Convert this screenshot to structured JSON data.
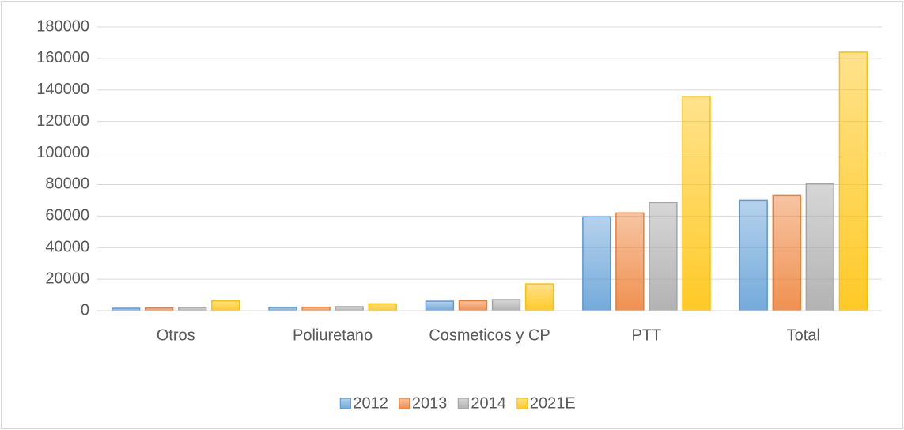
{
  "chart_data": {
    "type": "bar",
    "categories": [
      "Otros",
      "Poliuretano",
      "Cosmeticos y CP",
      "PTT",
      "Total"
    ],
    "series": [
      {
        "name": "2012",
        "color": "#5b9bd5",
        "values": [
          1500,
          2000,
          6000,
          59500,
          70000
        ]
      },
      {
        "name": "2013",
        "color": "#ed7d31",
        "values": [
          1700,
          2100,
          6300,
          62000,
          73000
        ]
      },
      {
        "name": "2014",
        "color": "#a5a5a5",
        "values": [
          2000,
          2500,
          7000,
          68500,
          80500
        ]
      },
      {
        "name": "2021E",
        "color": "#ffc000",
        "values": [
          6200,
          4300,
          17000,
          136000,
          164000
        ]
      }
    ],
    "ylim": [
      0,
      180000
    ],
    "yticks": [
      0,
      20000,
      40000,
      60000,
      80000,
      100000,
      120000,
      140000,
      160000,
      180000
    ],
    "grid": true,
    "legend": "bottom"
  }
}
